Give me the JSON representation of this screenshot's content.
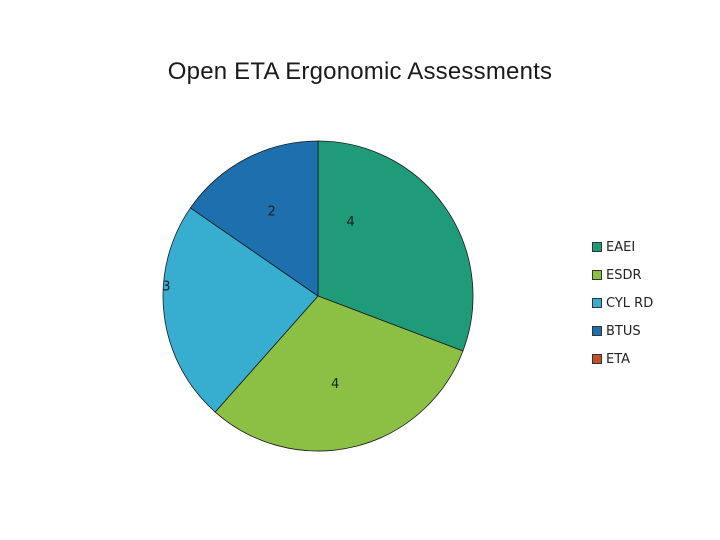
{
  "chart_data": {
    "type": "pie",
    "title": "Open ETA Ergonomic Assessments",
    "categories": [
      "EAEI",
      "ESDR",
      "CYL RD",
      "BTUS",
      "ETA"
    ],
    "values": [
      4,
      4,
      3,
      2,
      0
    ],
    "colors": [
      "#1f9b79",
      "#8bc045",
      "#37aed0",
      "#1e6fad",
      "#c0502a"
    ],
    "data_labels": [
      "4",
      "4",
      "3",
      "2",
      ""
    ],
    "legend_position": "right",
    "start_angle": "12 o'clock, clockwise"
  }
}
